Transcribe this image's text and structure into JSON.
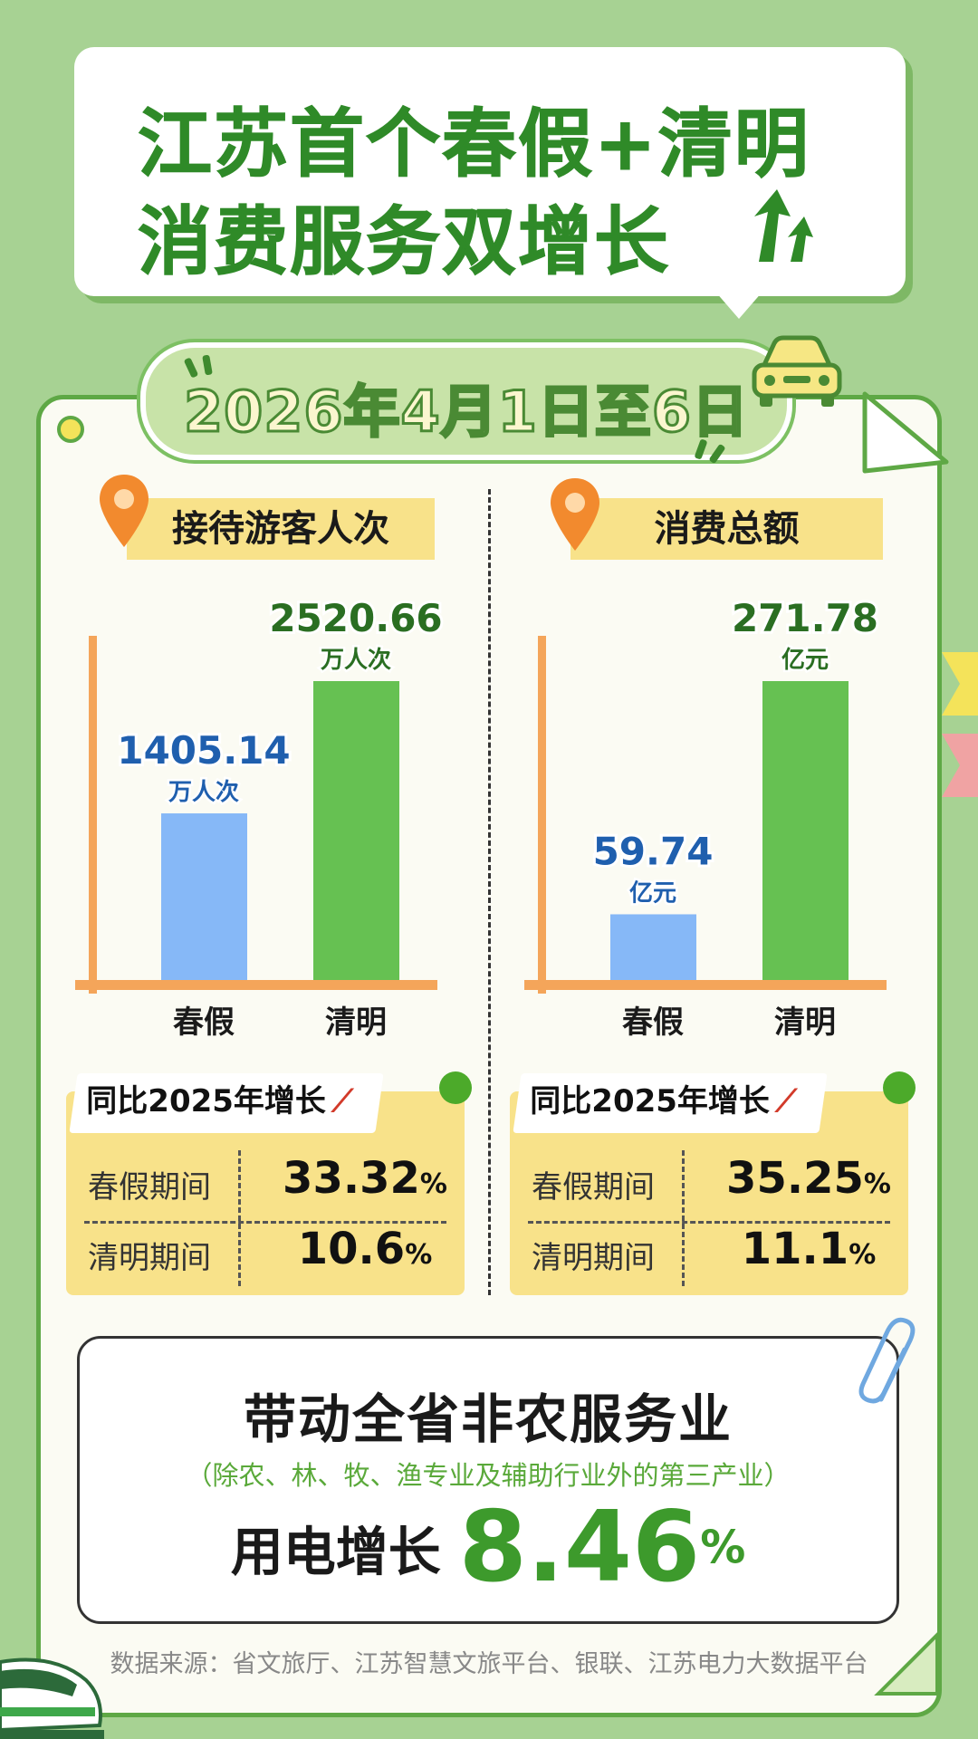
{
  "title": {
    "line1": "江苏首个春假+清明",
    "line2": "消费服务双增长"
  },
  "date_banner": "2026年4月1日至6日",
  "charts": [
    {
      "tag": "接待游客人次",
      "categories": [
        "春假",
        "清明"
      ],
      "values_text": [
        "1405.14",
        "2520.66"
      ],
      "units": [
        "万人次",
        "万人次"
      ]
    },
    {
      "tag": "消费总额",
      "categories": [
        "春假",
        "清明"
      ],
      "values_text": [
        "59.74",
        "271.78"
      ],
      "units": [
        "亿元",
        "亿元"
      ]
    }
  ],
  "chart_data": [
    {
      "type": "bar",
      "categories": [
        "春假",
        "清明"
      ],
      "values": [
        1405.14,
        2520.66
      ],
      "title": "接待游客人次",
      "unit": "万人次",
      "colors": [
        "#86b8f7",
        "#66c152"
      ]
    },
    {
      "type": "bar",
      "categories": [
        "春假",
        "清明"
      ],
      "values": [
        59.74,
        271.78
      ],
      "title": "消费总额",
      "unit": "亿元",
      "colors": [
        "#86b8f7",
        "#66c152"
      ]
    }
  ],
  "growth": [
    {
      "header": "同比2025年增长",
      "rows": [
        {
          "label": "春假期间",
          "value": "33.32",
          "pct": "%"
        },
        {
          "label": "清明期间",
          "value": "10.6",
          "pct": "%"
        }
      ]
    },
    {
      "header": "同比2025年增长",
      "rows": [
        {
          "label": "春假期间",
          "value": "35.25",
          "pct": "%"
        },
        {
          "label": "清明期间",
          "value": "11.1",
          "pct": "%"
        }
      ]
    }
  ],
  "bottom": {
    "title": "带动全省非农服务业",
    "subtitle": "（除农、林、牧、渔专业及辅助行业外的第三产业）",
    "label": "用电增长",
    "value": "8.46",
    "pct": "%"
  },
  "source": "数据来源：省文旅厅、江苏智慧文旅平台、银联、江苏电力大数据平台",
  "colors": {
    "background": "#a7d293",
    "accent_green": "#3d9a2c",
    "blue_bar": "#86b8f7",
    "green_bar": "#66c152",
    "axis_orange": "#f4a55a",
    "tag_yellow": "#f8e28a",
    "value_blue": "#1f5fae",
    "value_green": "#2a6e22"
  }
}
